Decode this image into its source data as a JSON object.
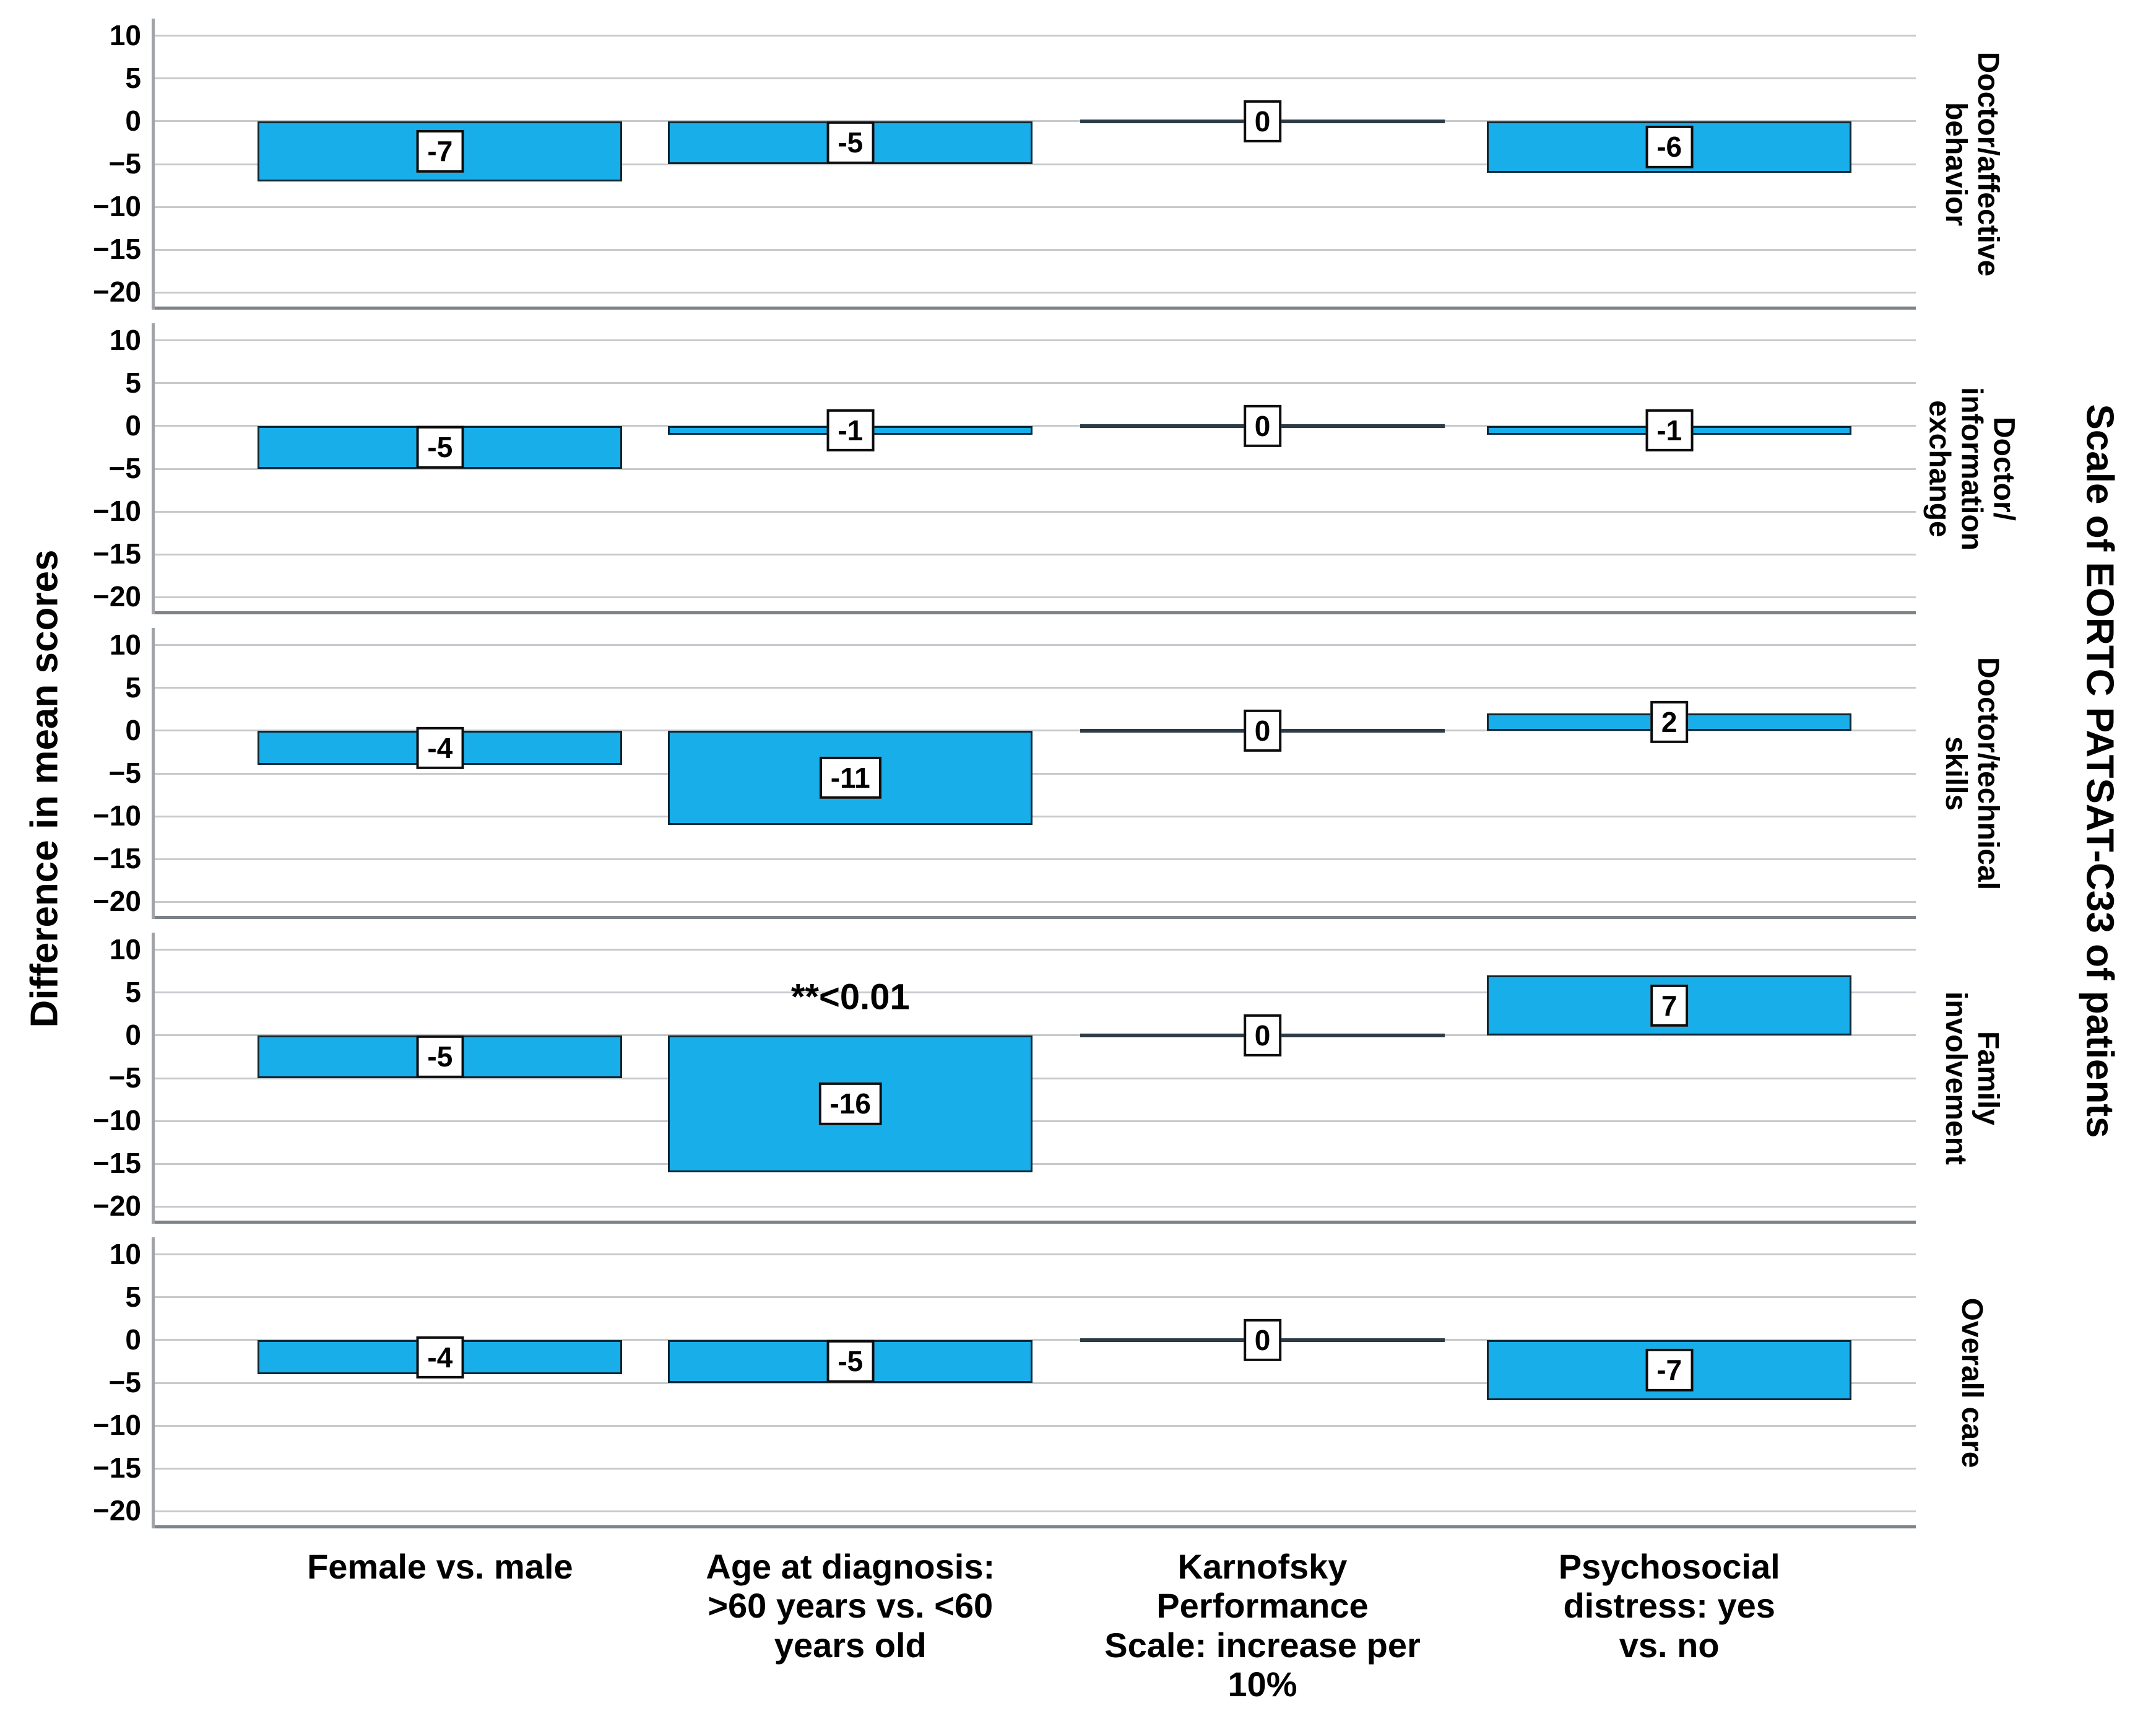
{
  "chart_data": {
    "type": "bar",
    "layout": "5 vertically stacked panels (small multiples) sharing x categories",
    "x_categories": [
      "Female vs. male",
      "Age at diagnosis: >60 years vs. <60 years old",
      "Karnofsky Performance Scale: increase per 10%",
      "Psychosocial distress: yes vs. no"
    ],
    "panels": [
      {
        "scale": "Doctor/affective behavior",
        "values": [
          -7,
          -5,
          0,
          -6
        ]
      },
      {
        "scale": "Doctor/ information exchange",
        "values": [
          -5,
          -1,
          0,
          -1
        ]
      },
      {
        "scale": "Doctor/technical skills",
        "values": [
          -4,
          -11,
          0,
          2
        ]
      },
      {
        "scale": "Family involvement",
        "values": [
          -5,
          -16,
          0,
          7
        ],
        "annotation": "**<0.01",
        "annotation_category_index": 1
      },
      {
        "scale": "Overall care",
        "values": [
          -4,
          -5,
          0,
          -7
        ]
      }
    ],
    "ylabel": "Difference in mean scores",
    "right_axis_label": "Scale of EORTC PATSAT-C33 of patients",
    "ylim": [
      -22,
      12
    ],
    "yticks": [
      10,
      5,
      0,
      -5,
      -10,
      -15,
      -20
    ],
    "grid": true,
    "legend": false,
    "bar_color": "#18aeea"
  },
  "figure": {
    "y_axis_title": "Difference in mean scores",
    "right_axis_title": "Scale of EORTC PATSAT-C33 of patients",
    "tick_labels": [
      "10",
      "5",
      "0",
      "−5",
      "−10",
      "−15",
      "−20"
    ],
    "tick_values": [
      10,
      5,
      0,
      -5,
      -10,
      -15,
      -20
    ],
    "x_tick_labels": [
      "Female vs. male",
      "Age at diagnosis:\n>60 years vs. <60\nyears old",
      "Karnofsky\nPerformance\nScale: increase per\n10%",
      "Psychosocial\ndistress: yes vs. no"
    ],
    "panels": [
      {
        "label": "Doctor/affective\nbehavior",
        "values": [
          -7,
          -5,
          0,
          -6
        ],
        "value_labels": [
          "-7",
          "-5",
          "0",
          "-6"
        ]
      },
      {
        "label": "Doctor/\ninformation\nexchange",
        "values": [
          -5,
          -1,
          0,
          -1
        ],
        "value_labels": [
          "-5",
          "-1",
          "0",
          "-1"
        ]
      },
      {
        "label": "Doctor/technical\nskills",
        "values": [
          -4,
          -11,
          0,
          2
        ],
        "value_labels": [
          "-4",
          "-11",
          "0",
          "2"
        ]
      },
      {
        "label": "Family\ninvolvement",
        "values": [
          -5,
          -16,
          0,
          7
        ],
        "value_labels": [
          "-5",
          "-16",
          "0",
          "7"
        ],
        "annotation": "**<0.01",
        "annotation_col": 1
      },
      {
        "label": "Overall care",
        "values": [
          -4,
          -5,
          0,
          -7
        ],
        "value_labels": [
          "-4",
          "-5",
          "0",
          "-7"
        ]
      }
    ],
    "colors": {
      "bar_fill": "#18aeea",
      "bar_border": "#0e2733",
      "gridline": "#c7cacd",
      "axis_line": "#a0a4a8",
      "panel_border": "#7d8287",
      "zero_bar_line": "#2c3b45",
      "label_box_bg": "#ffffff",
      "label_box_border": "#0d0d0d",
      "text": "#000000"
    }
  }
}
